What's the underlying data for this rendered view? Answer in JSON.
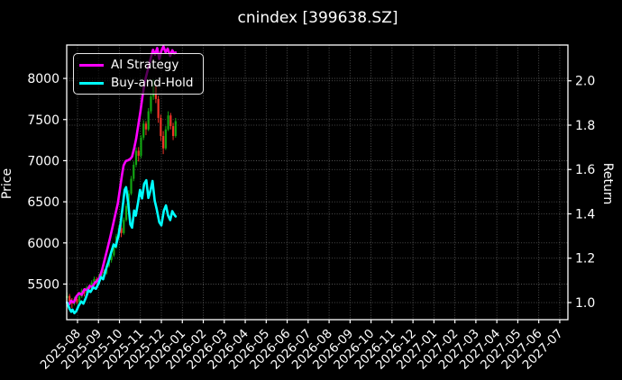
{
  "title": "cnindex [399638.SZ]",
  "axes": {
    "left_label": "Price",
    "right_label": "Return"
  },
  "legend": {
    "items": [
      {
        "label": "AI Strategy",
        "color": "#ff00ff"
      },
      {
        "label": "Buy-and-Hold",
        "color": "#00ffff"
      }
    ]
  },
  "chart_data": {
    "type": "candlestick+line",
    "title": "cnindex [399638.SZ]",
    "ylabel_left": "Price",
    "ylabel_right": "Return",
    "grid": true,
    "legend_position": "upper left",
    "background": "#000000",
    "x_tick_labels": [
      "2025-08",
      "2025-09",
      "2025-10",
      "2025-11",
      "2025-12",
      "2026-01",
      "2026-02",
      "2026-03",
      "2026-04",
      "2026-05",
      "2026-06",
      "2026-07",
      "2026-08",
      "2026-09",
      "2026-10",
      "2026-11",
      "2026-12",
      "2027-01",
      "2027-02",
      "2027-03",
      "2027-04",
      "2027-05",
      "2027-06",
      "2027-07"
    ],
    "xlim_months": [
      -0.515,
      23.39
    ],
    "price_ticks": [
      5500,
      6000,
      6500,
      7000,
      7500,
      8000
    ],
    "price_lim": [
      5067,
      8406
    ],
    "return_ticks": [
      1.0,
      1.2,
      1.4,
      1.6,
      1.8,
      2.0
    ],
    "return_lim": [
      0.9228,
      2.1614
    ],
    "candles": {
      "up_color": "#12a512",
      "down_color": "#f03428",
      "start_month": -0.5,
      "step_month": 0.1177,
      "ohlc": [
        [
          5330,
          5400,
          5270,
          5355
        ],
        [
          5355,
          5380,
          5250,
          5290
        ],
        [
          5290,
          5330,
          5210,
          5265
        ],
        [
          5265,
          5345,
          5240,
          5320
        ],
        [
          5320,
          5350,
          5255,
          5280
        ],
        [
          5280,
          5370,
          5260,
          5350
        ],
        [
          5350,
          5445,
          5330,
          5420
        ],
        [
          5420,
          5450,
          5350,
          5390
        ],
        [
          5390,
          5480,
          5370,
          5460
        ],
        [
          5460,
          5490,
          5400,
          5440
        ],
        [
          5440,
          5545,
          5430,
          5520
        ],
        [
          5520,
          5590,
          5490,
          5560
        ],
        [
          5560,
          5585,
          5495,
          5530
        ],
        [
          5530,
          5625,
          5510,
          5600
        ],
        [
          5600,
          5680,
          5575,
          5650
        ],
        [
          5650,
          5675,
          5590,
          5630
        ],
        [
          5630,
          5745,
          5615,
          5720
        ],
        [
          5720,
          5815,
          5700,
          5790
        ],
        [
          5790,
          5880,
          5760,
          5850
        ],
        [
          5850,
          5985,
          5830,
          5950
        ],
        [
          5950,
          6110,
          5930,
          6080
        ],
        [
          6080,
          6215,
          6050,
          6180
        ],
        [
          6180,
          6220,
          6070,
          6120
        ],
        [
          6120,
          6310,
          6100,
          6280
        ],
        [
          6280,
          6480,
          6260,
          6450
        ],
        [
          6450,
          6640,
          6420,
          6600
        ],
        [
          6600,
          6815,
          6580,
          6780
        ],
        [
          6780,
          6990,
          6750,
          6950
        ],
        [
          6950,
          7160,
          6920,
          7120
        ],
        [
          7120,
          7165,
          6990,
          7060
        ],
        [
          7060,
          7310,
          7030,
          7280
        ],
        [
          7280,
          7490,
          7250,
          7450
        ],
        [
          7450,
          7480,
          7310,
          7380
        ],
        [
          7380,
          7640,
          7360,
          7600
        ],
        [
          7600,
          7820,
          7570,
          7780
        ],
        [
          7780,
          7990,
          7740,
          7900
        ],
        [
          7900,
          7930,
          7700,
          7750
        ],
        [
          7750,
          7790,
          7460,
          7520
        ],
        [
          7520,
          7560,
          7240,
          7300
        ],
        [
          7300,
          7360,
          7080,
          7150
        ],
        [
          7150,
          7420,
          7130,
          7380
        ],
        [
          7380,
          7600,
          7360,
          7550
        ],
        [
          7550,
          7580,
          7380,
          7420
        ],
        [
          7420,
          7460,
          7250,
          7300
        ],
        [
          7300,
          7520,
          7280,
          7480
        ]
      ]
    },
    "series": [
      {
        "name": "AI Strategy",
        "color": "#ff00ff",
        "axis": "return",
        "points": [
          [
            -0.5,
            1.0
          ],
          [
            -0.4,
            0.992
          ],
          [
            -0.3,
            1.008
          ],
          [
            -0.18,
            1.0
          ],
          [
            -0.05,
            1.028
          ],
          [
            0.08,
            1.042
          ],
          [
            0.2,
            1.035
          ],
          [
            0.33,
            1.06
          ],
          [
            0.46,
            1.055
          ],
          [
            0.58,
            1.075
          ],
          [
            0.7,
            1.07
          ],
          [
            0.83,
            1.09
          ],
          [
            0.95,
            1.098
          ],
          [
            1.05,
            1.112
          ],
          [
            1.18,
            1.15
          ],
          [
            1.3,
            1.195
          ],
          [
            1.42,
            1.24
          ],
          [
            1.55,
            1.29
          ],
          [
            1.67,
            1.34
          ],
          [
            1.8,
            1.395
          ],
          [
            1.92,
            1.445
          ],
          [
            2.02,
            1.51
          ],
          [
            2.12,
            1.575
          ],
          [
            2.2,
            1.618
          ],
          [
            2.3,
            1.638
          ],
          [
            2.42,
            1.642
          ],
          [
            2.52,
            1.648
          ],
          [
            2.6,
            1.658
          ],
          [
            2.7,
            1.695
          ],
          [
            2.8,
            1.74
          ],
          [
            2.9,
            1.8
          ],
          [
            3.0,
            1.862
          ],
          [
            3.1,
            1.93
          ],
          [
            3.2,
            1.992
          ],
          [
            3.3,
            2.03
          ],
          [
            3.4,
            2.068
          ],
          [
            3.5,
            2.105
          ],
          [
            3.6,
            2.14
          ],
          [
            3.7,
            2.118
          ],
          [
            3.8,
            2.148
          ],
          [
            3.9,
            2.098
          ],
          [
            4.0,
            2.135
          ],
          [
            4.1,
            2.155
          ],
          [
            4.2,
            2.128
          ],
          [
            4.3,
            2.145
          ],
          [
            4.42,
            2.112
          ],
          [
            4.52,
            2.138
          ],
          [
            4.62,
            2.122
          ],
          [
            4.68,
            2.128
          ]
        ]
      },
      {
        "name": "Buy-and-Hold",
        "color": "#00ffff",
        "axis": "return",
        "points": [
          [
            -0.5,
            1.0
          ],
          [
            -0.38,
            0.972
          ],
          [
            -0.3,
            0.958
          ],
          [
            -0.24,
            0.968
          ],
          [
            -0.15,
            0.952
          ],
          [
            -0.05,
            0.962
          ],
          [
            0.05,
            0.985
          ],
          [
            0.18,
            1.005
          ],
          [
            0.28,
            0.995
          ],
          [
            0.4,
            1.022
          ],
          [
            0.52,
            1.055
          ],
          [
            0.62,
            1.048
          ],
          [
            0.75,
            1.068
          ],
          [
            0.88,
            1.062
          ],
          [
            1.0,
            1.085
          ],
          [
            1.12,
            1.115
          ],
          [
            1.22,
            1.105
          ],
          [
            1.35,
            1.148
          ],
          [
            1.48,
            1.185
          ],
          [
            1.6,
            1.225
          ],
          [
            1.72,
            1.262
          ],
          [
            1.82,
            1.252
          ],
          [
            1.95,
            1.3
          ],
          [
            2.05,
            1.355
          ],
          [
            2.15,
            1.43
          ],
          [
            2.25,
            1.508
          ],
          [
            2.32,
            1.52
          ],
          [
            2.42,
            1.445
          ],
          [
            2.52,
            1.352
          ],
          [
            2.6,
            1.338
          ],
          [
            2.7,
            1.415
          ],
          [
            2.78,
            1.392
          ],
          [
            2.88,
            1.448
          ],
          [
            2.98,
            1.508
          ],
          [
            3.08,
            1.47
          ],
          [
            3.18,
            1.535
          ],
          [
            3.28,
            1.552
          ],
          [
            3.38,
            1.472
          ],
          [
            3.48,
            1.505
          ],
          [
            3.58,
            1.548
          ],
          [
            3.68,
            1.46
          ],
          [
            3.78,
            1.42
          ],
          [
            3.9,
            1.362
          ],
          [
            4.0,
            1.348
          ],
          [
            4.12,
            1.415
          ],
          [
            4.22,
            1.438
          ],
          [
            4.32,
            1.392
          ],
          [
            4.42,
            1.372
          ],
          [
            4.52,
            1.412
          ],
          [
            4.6,
            1.398
          ],
          [
            4.68,
            1.388
          ]
        ]
      }
    ]
  }
}
